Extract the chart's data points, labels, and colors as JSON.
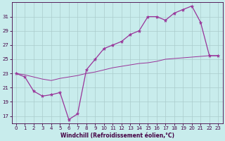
{
  "background_color": "#c8ecec",
  "grid_color": "#aacccc",
  "line_color": "#993399",
  "spine_color": "#440044",
  "xlabel": "Windchill (Refroidissement éolien,°C)",
  "xlim": [
    -0.5,
    23.5
  ],
  "ylim": [
    16.0,
    33.0
  ],
  "yticks": [
    17,
    19,
    21,
    23,
    25,
    27,
    29,
    31
  ],
  "xticks": [
    0,
    1,
    2,
    3,
    4,
    5,
    6,
    7,
    8,
    9,
    10,
    11,
    12,
    13,
    14,
    15,
    16,
    17,
    18,
    19,
    20,
    21,
    22,
    23
  ],
  "line_main_x": [
    0,
    1,
    2,
    3,
    4,
    5,
    6,
    7,
    8,
    9,
    10,
    11,
    12,
    13,
    14,
    15,
    16,
    17,
    18,
    19,
    20,
    21,
    22,
    23
  ],
  "line_main_y": [
    23.0,
    22.5,
    20.5,
    19.8,
    20.0,
    20.3,
    16.5,
    17.3,
    23.5,
    25.0,
    26.5,
    27.0,
    27.5,
    28.5,
    29.0,
    31.0,
    31.0,
    30.5,
    31.5,
    32.0,
    32.5,
    30.2,
    25.5,
    25.5
  ],
  "line_base_x": [
    0,
    1,
    2,
    3,
    4,
    5,
    6,
    7,
    8,
    9,
    10,
    11,
    12,
    13,
    14,
    15,
    16,
    17,
    18,
    19,
    20,
    21,
    22,
    23
  ],
  "line_base_y": [
    23.0,
    22.8,
    22.5,
    22.2,
    22.0,
    22.3,
    22.5,
    22.7,
    23.0,
    23.2,
    23.5,
    23.8,
    24.0,
    24.2,
    24.4,
    24.5,
    24.7,
    25.0,
    25.1,
    25.2,
    25.3,
    25.4,
    25.5,
    25.5
  ],
  "tick_fontsize": 5,
  "xlabel_fontsize": 5.5,
  "linewidth_main": 0.9,
  "linewidth_base": 0.7,
  "marker_size": 3.5
}
